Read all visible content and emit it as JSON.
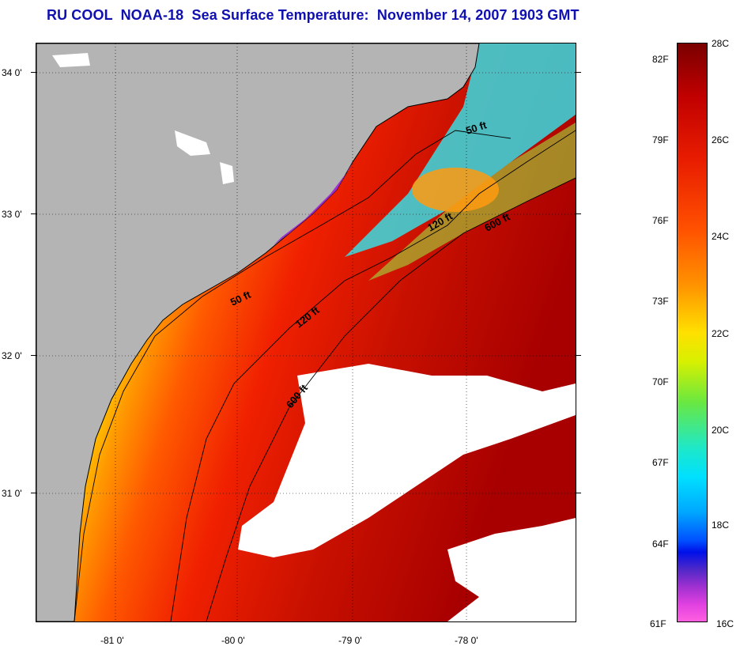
{
  "title": "RU COOL  NOAA-18  Sea Surface Temperature:  November 14, 2007 1903 GMT",
  "map": {
    "lat_labels": [
      "34 0'",
      "33 0'",
      "32 0'",
      "31 0'"
    ],
    "lon_labels": [
      "-81 0'",
      "-80 0'",
      "-79 0'",
      "-78 0'"
    ],
    "contour_labels": [
      "50 ft",
      "120 ft",
      "600 ft",
      "50 ft",
      "120 ft",
      "600 ft"
    ],
    "colors": {
      "land": "#b4b4b4",
      "cloud": "#ffffff",
      "coast_line": "#000000"
    }
  },
  "colorbar": {
    "fahrenheit_labels": [
      "82F",
      "79F",
      "76F",
      "73F",
      "70F",
      "67F",
      "64F",
      "61F"
    ],
    "celsius_labels": [
      "28C",
      "26C",
      "24C",
      "22C",
      "20C",
      "18C",
      "16C"
    ]
  }
}
